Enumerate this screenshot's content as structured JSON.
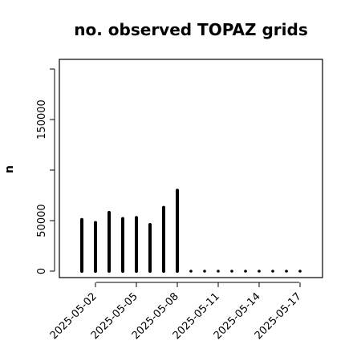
{
  "chart_data": {
    "type": "bar",
    "title": "no. observed TOPAZ grids",
    "xlabel": "",
    "ylabel": "n",
    "ylim": [
      0,
      200000
    ],
    "yticks": [
      0,
      50000,
      100000,
      150000
    ],
    "ytick_labels": [
      "0",
      "50000",
      "",
      "150000"
    ],
    "xticks": [
      "2025-05-02",
      "2025-05-05",
      "2025-05-08",
      "2025-05-11",
      "2025-05-14",
      "2025-05-17"
    ],
    "highlight_tick": "2025-05-08",
    "highlight_color": "#1f8a1f",
    "bar_color": "#000000",
    "x": [
      "2025-05-01",
      "2025-05-02",
      "2025-05-03",
      "2025-05-04",
      "2025-05-05",
      "2025-05-06",
      "2025-05-07",
      "2025-05-08",
      "2025-05-09",
      "2025-05-10",
      "2025-05-11",
      "2025-05-12",
      "2025-05-13",
      "2025-05-14",
      "2025-05-15",
      "2025-05-16",
      "2025-05-17"
    ],
    "values": [
      51000,
      48000,
      58000,
      52000,
      53000,
      46000,
      63000,
      80000,
      0,
      0,
      0,
      0,
      0,
      0,
      0,
      0,
      0
    ],
    "grid": false
  }
}
